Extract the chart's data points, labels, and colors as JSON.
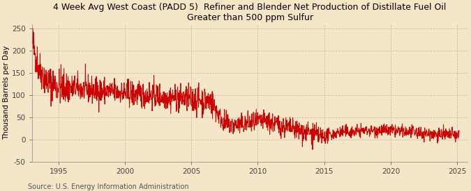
{
  "title_line1": "4 Week Avg West Coast (PADD 5)  Refiner and Blender Net Production of Distillate Fuel Oil",
  "title_line2": "Greater than 500 ppm Sulfur",
  "ylabel": "Thousand Barrels per Day",
  "source": "Source: U.S. Energy Information Administration",
  "line_color": "#cc0000",
  "background_color": "#f5e6c8",
  "plot_background": "#f5e6c8",
  "ylim": [
    -50,
    260
  ],
  "yticks": [
    -50,
    0,
    50,
    100,
    150,
    200,
    250
  ],
  "xlim_start": 1993.0,
  "xlim_end": 2025.8,
  "xticks": [
    1995,
    2000,
    2005,
    2010,
    2015,
    2020,
    2025
  ],
  "grid_color": "#aaaaaa",
  "linewidth": 0.7,
  "title_fontsize": 9.0,
  "axis_fontsize": 7.5,
  "ylabel_fontsize": 7.5,
  "source_fontsize": 7.0
}
